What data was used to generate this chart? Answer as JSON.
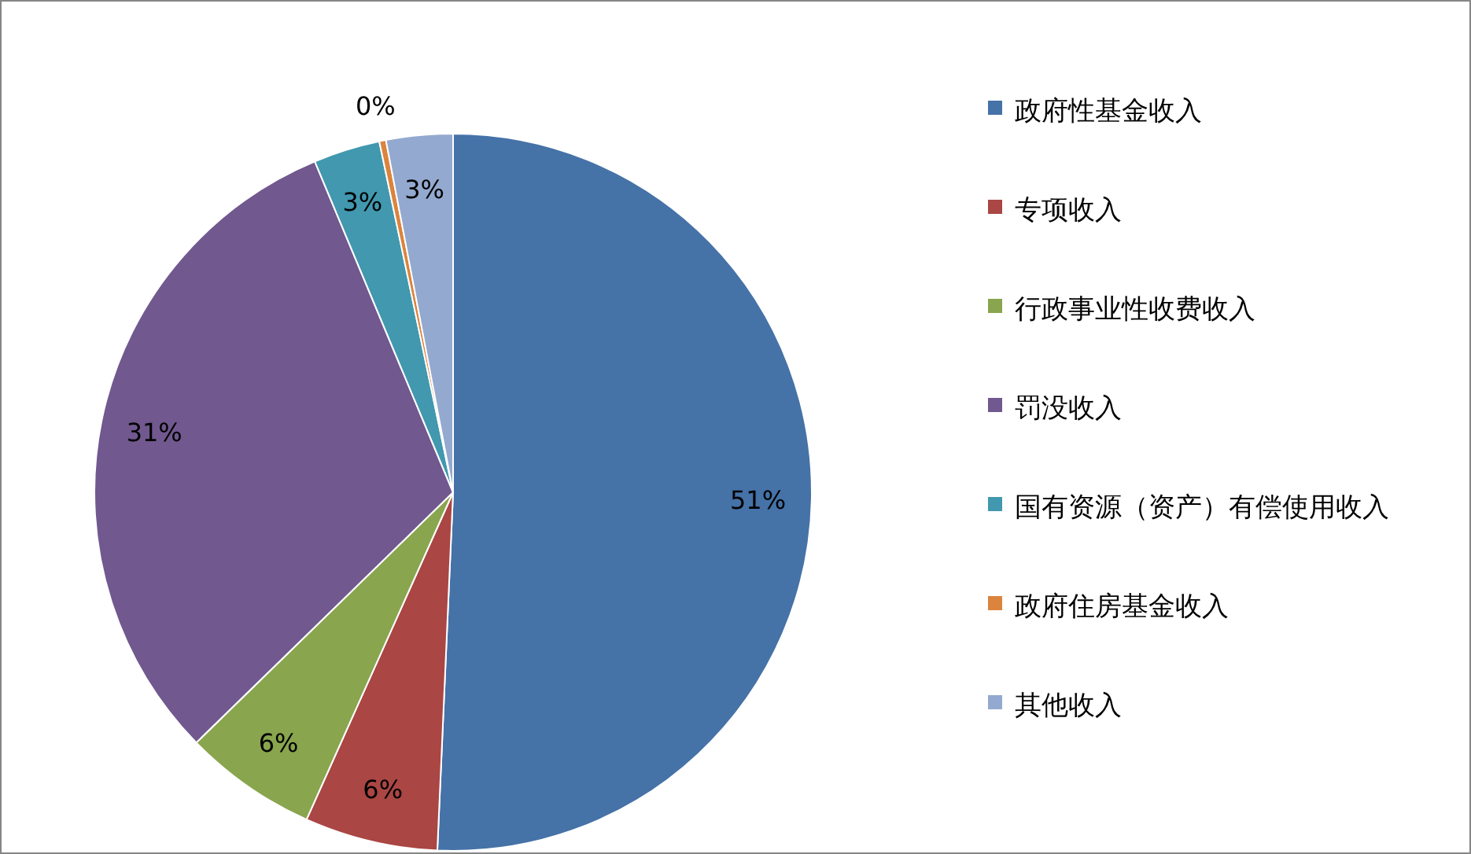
{
  "chart_data": {
    "type": "pie",
    "categories": [
      "政府性基金收入",
      "专项收入",
      "行政事业性收费收入",
      "罚没收入",
      "国有资源（资产）有偿使用收入",
      "政府住房基金收入",
      "其他收入"
    ],
    "values": [
      50.7,
      6,
      6,
      31,
      3,
      0.3,
      3
    ],
    "value_labels": [
      "51%",
      "6%",
      "6%",
      "31%",
      "3%",
      "0%",
      "3%"
    ],
    "colors": [
      "#4572a7",
      "#aa4643",
      "#89a54e",
      "#71588f",
      "#4198af",
      "#db843d",
      "#93a9cf"
    ],
    "legend": "right"
  }
}
